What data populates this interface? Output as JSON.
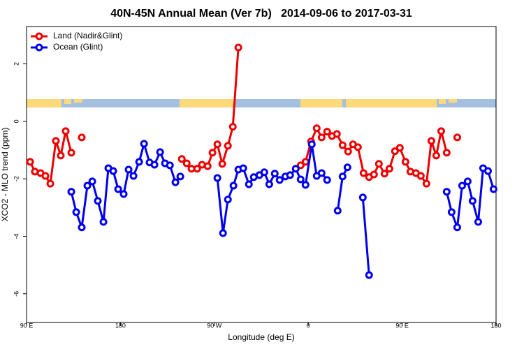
{
  "chart_data": {
    "type": "line",
    "title": "40N-45N Annual Mean (Ver 7b)   2014-09-06 to 2017-03-31",
    "xlabel": "Longitude (deg E)",
    "ylabel": "XCO2 - MLO trend (ppm)",
    "xlim": [
      90,
      540
    ],
    "ylim": [
      -7,
      3.3
    ],
    "xticks": [
      {
        "value": 90,
        "label": "90 E"
      },
      180,
      {
        "value": 270,
        "label": "90 W"
      },
      {
        "value": 360,
        "label": "0"
      },
      {
        "value": 450,
        "label": "90 E"
      },
      {
        "value": 540,
        "label": "180"
      }
    ],
    "yticks": [
      -6,
      -4,
      -2,
      0,
      2
    ],
    "legend": "top-left",
    "series": [
      {
        "name": "Land (Nadir&Glint)",
        "color": "#ee0000",
        "x": [
          93.4,
          98.0,
          103.4,
          108.1,
          112.8,
          118.1,
          122.8,
          127.5,
          132.9,
          null,
          142.9,
          null,
          238.8,
          243.5,
          248.1,
          253.5,
          258.2,
          263.6,
          268.2,
          272.9,
          277.6,
          283.0,
          287.7,
          293.0,
          null,
          352.7,
          357.4,
          362.7,
          368.1,
          372.8,
          378.1,
          382.8,
          387.5,
          392.9,
          398.2,
          402.9,
          407.6,
          413.0,
          418.3,
          423.0,
          427.7,
          433.1,
          437.8,
          443.1,
          447.8,
          453.2,
          457.9,
          463.2,
          467.9,
          473.3,
          478.0,
          482.7,
          487.4,
          492.7,
          null,
          502.8
        ],
        "values": [
          -1.41,
          -1.75,
          -1.8,
          -1.9,
          -2.17,
          -0.68,
          -1.19,
          -0.34,
          -1.09,
          null,
          -0.56,
          null,
          -1.31,
          -1.46,
          -1.65,
          -1.65,
          -1.51,
          -1.56,
          -1.09,
          -0.8,
          -1.48,
          -0.85,
          -0.19,
          2.57,
          null,
          -1.53,
          -1.41,
          -0.7,
          -0.24,
          -0.56,
          -0.36,
          -0.51,
          -0.44,
          -0.83,
          -1.05,
          -0.8,
          -0.9,
          -1.8,
          -1.94,
          -1.85,
          -1.48,
          -1.82,
          -1.65,
          -1.04,
          -0.92,
          -1.41,
          -1.75,
          -1.8,
          -1.9,
          -2.17,
          -0.68,
          -1.19,
          -0.34,
          -1.09,
          null,
          -0.56
        ]
      },
      {
        "name": "Ocean (Glint)",
        "color": "#0000ee",
        "x": [
          132.9,
          137.6,
          142.9,
          148.3,
          153.0,
          158.3,
          163.7,
          168.4,
          173.1,
          177.8,
          183.1,
          187.8,
          192.5,
          197.9,
          202.6,
          207.9,
          212.6,
          218.0,
          222.7,
          227.4,
          232.7,
          237.4,
          null,
          272.9,
          278.3,
          283.0,
          288.3,
          293.0,
          297.7,
          303.1,
          307.8,
          313.2,
          317.9,
          322.6,
          327.9,
          332.6,
          338.0,
          342.6,
          348.0,
          352.7,
          357.4,
          363.4,
          368.1,
          372.8,
          378.1,
          null,
          388.2,
          392.9,
          397.6,
          null,
          412.3,
          418.3,
          null,
          492.7,
          497.4,
          502.8,
          507.5,
          512.8,
          517.5,
          522.9,
          527.6,
          532.3,
          537.6
        ],
        "values": [
          -2.45,
          -3.16,
          -3.69,
          -2.24,
          -2.09,
          -2.77,
          -3.5,
          -1.63,
          -1.73,
          -2.36,
          -2.53,
          -1.68,
          -1.9,
          -1.41,
          -0.78,
          -1.43,
          -1.51,
          -1.07,
          -1.46,
          -1.53,
          -2.12,
          -1.92,
          null,
          -1.97,
          -3.89,
          -2.72,
          -2.24,
          -1.68,
          -1.63,
          -2.19,
          -1.94,
          -1.87,
          -1.77,
          -2.19,
          -1.82,
          -2.04,
          -1.92,
          -1.87,
          -1.65,
          -2.02,
          -2.21,
          -0.8,
          -1.9,
          -1.8,
          -2.04,
          null,
          -3.11,
          -1.92,
          -1.6,
          null,
          -2.65,
          -5.35,
          null,
          -2.45,
          -3.16,
          -3.69,
          -2.24,
          -2.09,
          -2.77,
          -3.5,
          -1.63,
          -1.73,
          -2.36
        ]
      }
    ]
  }
}
